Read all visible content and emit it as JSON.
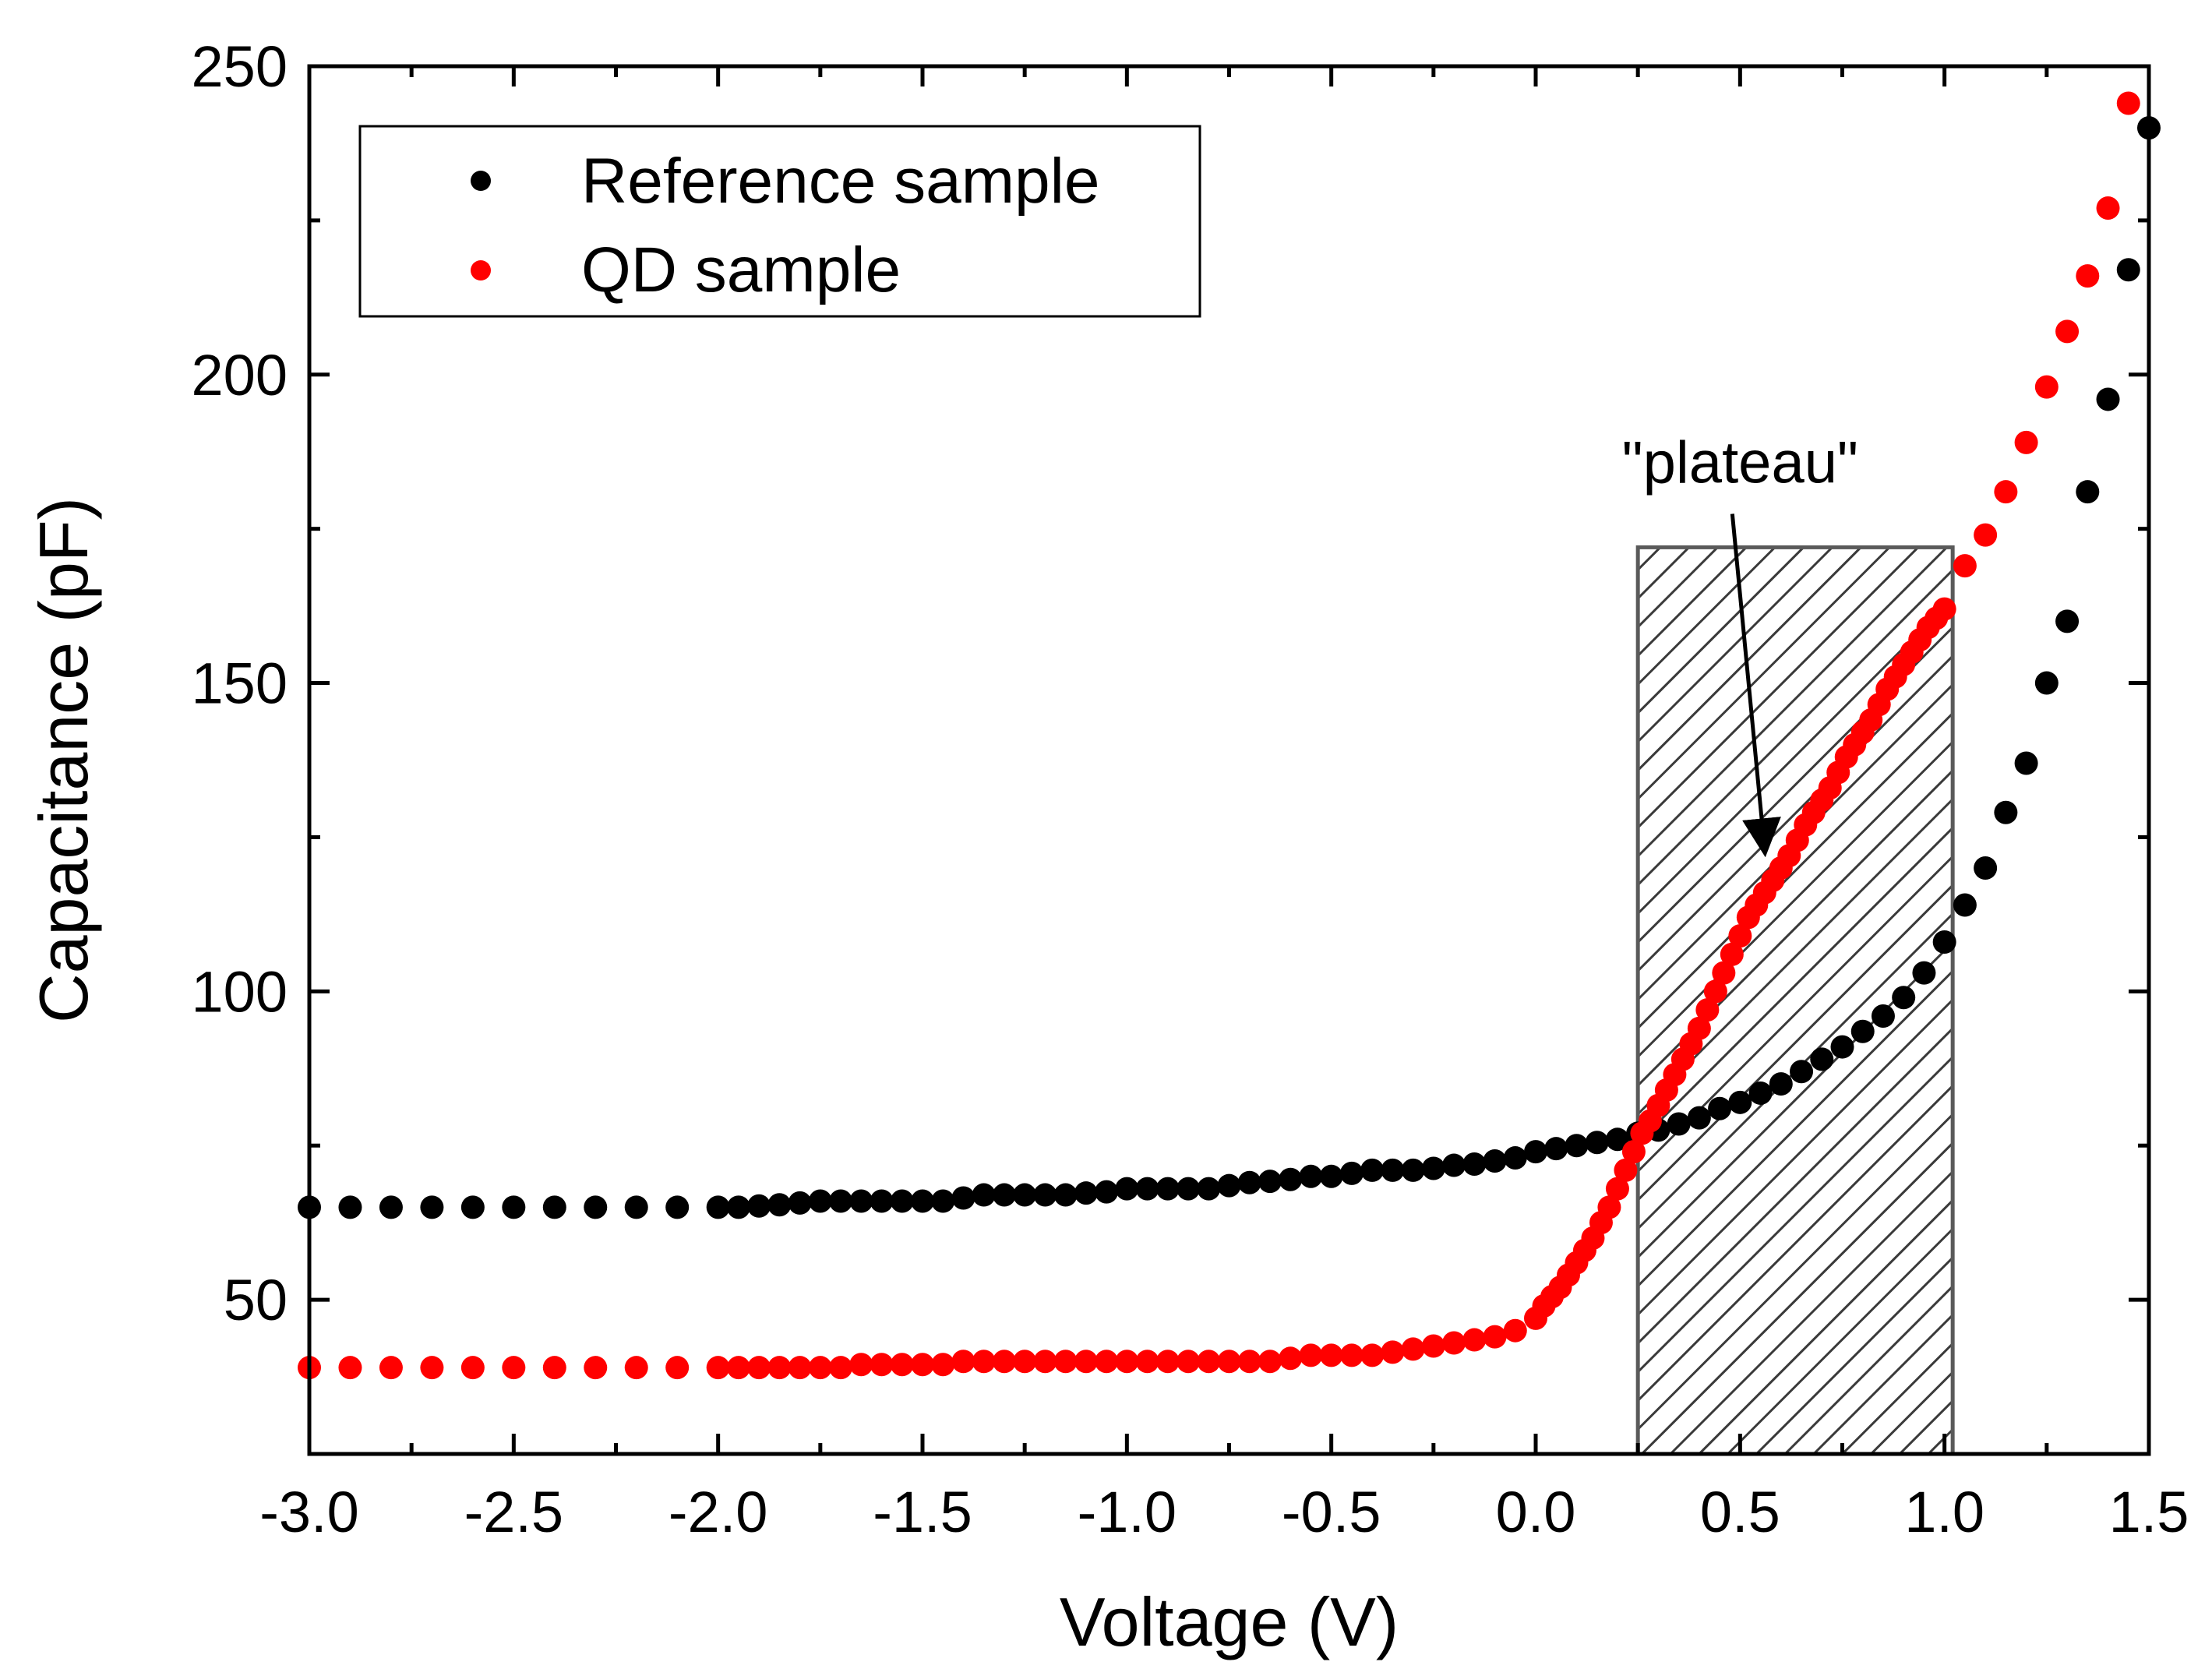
{
  "chart_data": {
    "type": "scatter",
    "title": "",
    "xlabel": "Voltage (V)",
    "ylabel": "Capacitance (pF)",
    "xlim": [
      -3.0,
      1.5
    ],
    "ylim": [
      25,
      250
    ],
    "xticks": [
      -3.0,
      -2.5,
      -2.0,
      -1.5,
      -1.0,
      -0.5,
      0.0,
      0.5,
      1.0,
      1.5
    ],
    "xtick_labels": [
      "-3.0",
      "-2.5",
      "-2.0",
      "-1.5",
      "-1.0",
      "-0.5",
      "0.0",
      "0.5",
      "1.0",
      "1.5"
    ],
    "yticks": [
      50,
      100,
      150,
      200,
      250
    ],
    "ytick_labels": [
      "50",
      "100",
      "150",
      "200",
      "250"
    ],
    "grid": false,
    "legend_position": "top-left",
    "series": [
      {
        "name": "Reference sample",
        "color": "#000000",
        "points": [
          [
            -3.0,
            65
          ],
          [
            -2.9,
            65
          ],
          [
            -2.8,
            65
          ],
          [
            -2.7,
            65
          ],
          [
            -2.6,
            65
          ],
          [
            -2.5,
            65
          ],
          [
            -2.4,
            65
          ],
          [
            -2.3,
            65
          ],
          [
            -2.2,
            65
          ],
          [
            -2.1,
            65
          ],
          [
            -2.0,
            65
          ],
          [
            -1.95,
            65
          ],
          [
            -1.9,
            65.2
          ],
          [
            -1.85,
            65.4
          ],
          [
            -1.8,
            65.7
          ],
          [
            -1.75,
            66
          ],
          [
            -1.7,
            66
          ],
          [
            -1.65,
            66
          ],
          [
            -1.6,
            66
          ],
          [
            -1.55,
            66
          ],
          [
            -1.5,
            66
          ],
          [
            -1.45,
            66
          ],
          [
            -1.4,
            66.5
          ],
          [
            -1.35,
            67
          ],
          [
            -1.3,
            67
          ],
          [
            -1.25,
            67
          ],
          [
            -1.2,
            67
          ],
          [
            -1.15,
            67
          ],
          [
            -1.1,
            67.3
          ],
          [
            -1.05,
            67.5
          ],
          [
            -1.0,
            68
          ],
          [
            -0.95,
            68
          ],
          [
            -0.9,
            68
          ],
          [
            -0.85,
            68
          ],
          [
            -0.8,
            68
          ],
          [
            -0.75,
            68.5
          ],
          [
            -0.7,
            69
          ],
          [
            -0.65,
            69.2
          ],
          [
            -0.6,
            69.5
          ],
          [
            -0.55,
            70
          ],
          [
            -0.5,
            70
          ],
          [
            -0.45,
            70.5
          ],
          [
            -0.4,
            71
          ],
          [
            -0.35,
            71
          ],
          [
            -0.3,
            71
          ],
          [
            -0.25,
            71.3
          ],
          [
            -0.2,
            71.8
          ],
          [
            -0.15,
            72
          ],
          [
            -0.1,
            72.5
          ],
          [
            -0.05,
            73
          ],
          [
            0.0,
            74
          ],
          [
            0.05,
            74.5
          ],
          [
            0.1,
            75
          ],
          [
            0.15,
            75.5
          ],
          [
            0.2,
            76
          ],
          [
            0.25,
            77
          ],
          [
            0.3,
            77.5
          ],
          [
            0.35,
            78.5
          ],
          [
            0.4,
            79.5
          ],
          [
            0.45,
            81
          ],
          [
            0.5,
            82
          ],
          [
            0.55,
            83.5
          ],
          [
            0.6,
            85
          ],
          [
            0.65,
            87
          ],
          [
            0.7,
            89
          ],
          [
            0.75,
            91
          ],
          [
            0.8,
            93.5
          ],
          [
            0.85,
            96
          ],
          [
            0.9,
            99
          ],
          [
            0.95,
            103
          ],
          [
            1.0,
            108
          ],
          [
            1.05,
            114
          ],
          [
            1.1,
            120
          ],
          [
            1.15,
            129
          ],
          [
            1.2,
            137
          ],
          [
            1.25,
            150
          ],
          [
            1.3,
            160
          ],
          [
            1.35,
            181
          ],
          [
            1.4,
            196
          ],
          [
            1.45,
            217
          ],
          [
            1.5,
            240
          ]
        ]
      },
      {
        "name": "QD sample",
        "color": "#ff0000",
        "points": [
          [
            -3.0,
            39
          ],
          [
            -2.9,
            39
          ],
          [
            -2.8,
            39
          ],
          [
            -2.7,
            39
          ],
          [
            -2.6,
            39
          ],
          [
            -2.5,
            39
          ],
          [
            -2.4,
            39
          ],
          [
            -2.3,
            39
          ],
          [
            -2.2,
            39
          ],
          [
            -2.1,
            39
          ],
          [
            -2.0,
            39
          ],
          [
            -1.95,
            39
          ],
          [
            -1.9,
            39
          ],
          [
            -1.85,
            39
          ],
          [
            -1.8,
            39
          ],
          [
            -1.75,
            39
          ],
          [
            -1.7,
            39
          ],
          [
            -1.65,
            39.5
          ],
          [
            -1.6,
            39.5
          ],
          [
            -1.55,
            39.5
          ],
          [
            -1.5,
            39.5
          ],
          [
            -1.45,
            39.5
          ],
          [
            -1.4,
            40
          ],
          [
            -1.35,
            40
          ],
          [
            -1.3,
            40
          ],
          [
            -1.25,
            40
          ],
          [
            -1.2,
            40
          ],
          [
            -1.15,
            40
          ],
          [
            -1.1,
            40
          ],
          [
            -1.05,
            40
          ],
          [
            -1.0,
            40
          ],
          [
            -0.95,
            40
          ],
          [
            -0.9,
            40
          ],
          [
            -0.85,
            40
          ],
          [
            -0.8,
            40
          ],
          [
            -0.75,
            40
          ],
          [
            -0.7,
            40
          ],
          [
            -0.65,
            40
          ],
          [
            -0.6,
            40.5
          ],
          [
            -0.55,
            41
          ],
          [
            -0.5,
            41
          ],
          [
            -0.45,
            41
          ],
          [
            -0.4,
            41
          ],
          [
            -0.35,
            41.5
          ],
          [
            -0.3,
            42
          ],
          [
            -0.25,
            42.5
          ],
          [
            -0.2,
            43
          ],
          [
            -0.15,
            43.5
          ],
          [
            -0.1,
            44
          ],
          [
            -0.05,
            45
          ],
          [
            0.0,
            47
          ],
          [
            0.02,
            49
          ],
          [
            0.04,
            50.5
          ],
          [
            0.06,
            52
          ],
          [
            0.08,
            54
          ],
          [
            0.1,
            56
          ],
          [
            0.12,
            58
          ],
          [
            0.14,
            60
          ],
          [
            0.16,
            62.5
          ],
          [
            0.18,
            65
          ],
          [
            0.2,
            68
          ],
          [
            0.22,
            71
          ],
          [
            0.24,
            74
          ],
          [
            0.26,
            77
          ],
          [
            0.28,
            79
          ],
          [
            0.3,
            81.5
          ],
          [
            0.32,
            84
          ],
          [
            0.34,
            86.5
          ],
          [
            0.36,
            89
          ],
          [
            0.38,
            91.5
          ],
          [
            0.4,
            94
          ],
          [
            0.42,
            97
          ],
          [
            0.44,
            100
          ],
          [
            0.46,
            103
          ],
          [
            0.48,
            106
          ],
          [
            0.5,
            109
          ],
          [
            0.52,
            112
          ],
          [
            0.54,
            114
          ],
          [
            0.56,
            116
          ],
          [
            0.58,
            118
          ],
          [
            0.6,
            120
          ],
          [
            0.62,
            122
          ],
          [
            0.64,
            124.5
          ],
          [
            0.66,
            127
          ],
          [
            0.68,
            129
          ],
          [
            0.7,
            131
          ],
          [
            0.72,
            133
          ],
          [
            0.74,
            135.5
          ],
          [
            0.76,
            138
          ],
          [
            0.78,
            140
          ],
          [
            0.8,
            142
          ],
          [
            0.82,
            144
          ],
          [
            0.84,
            146.5
          ],
          [
            0.86,
            149
          ],
          [
            0.88,
            151
          ],
          [
            0.9,
            153
          ],
          [
            0.92,
            155
          ],
          [
            0.94,
            157
          ],
          [
            0.96,
            159
          ],
          [
            0.98,
            160.5
          ],
          [
            1.0,
            162
          ],
          [
            1.05,
            169
          ],
          [
            1.1,
            174
          ],
          [
            1.15,
            181
          ],
          [
            1.2,
            189
          ],
          [
            1.25,
            198
          ],
          [
            1.3,
            207
          ],
          [
            1.35,
            216
          ],
          [
            1.4,
            227
          ],
          [
            1.45,
            244
          ]
        ]
      }
    ],
    "annotations": [
      {
        "type": "shaded_region",
        "x_range": [
          0.25,
          1.02
        ],
        "y_range": [
          25,
          172
        ],
        "pattern": "diagonal-hatch"
      },
      {
        "type": "arrow_label",
        "text": "\"plateau\"",
        "label_at": [
          0.5,
          185
        ],
        "arrow_to": [
          0.56,
          123
        ]
      }
    ]
  }
}
